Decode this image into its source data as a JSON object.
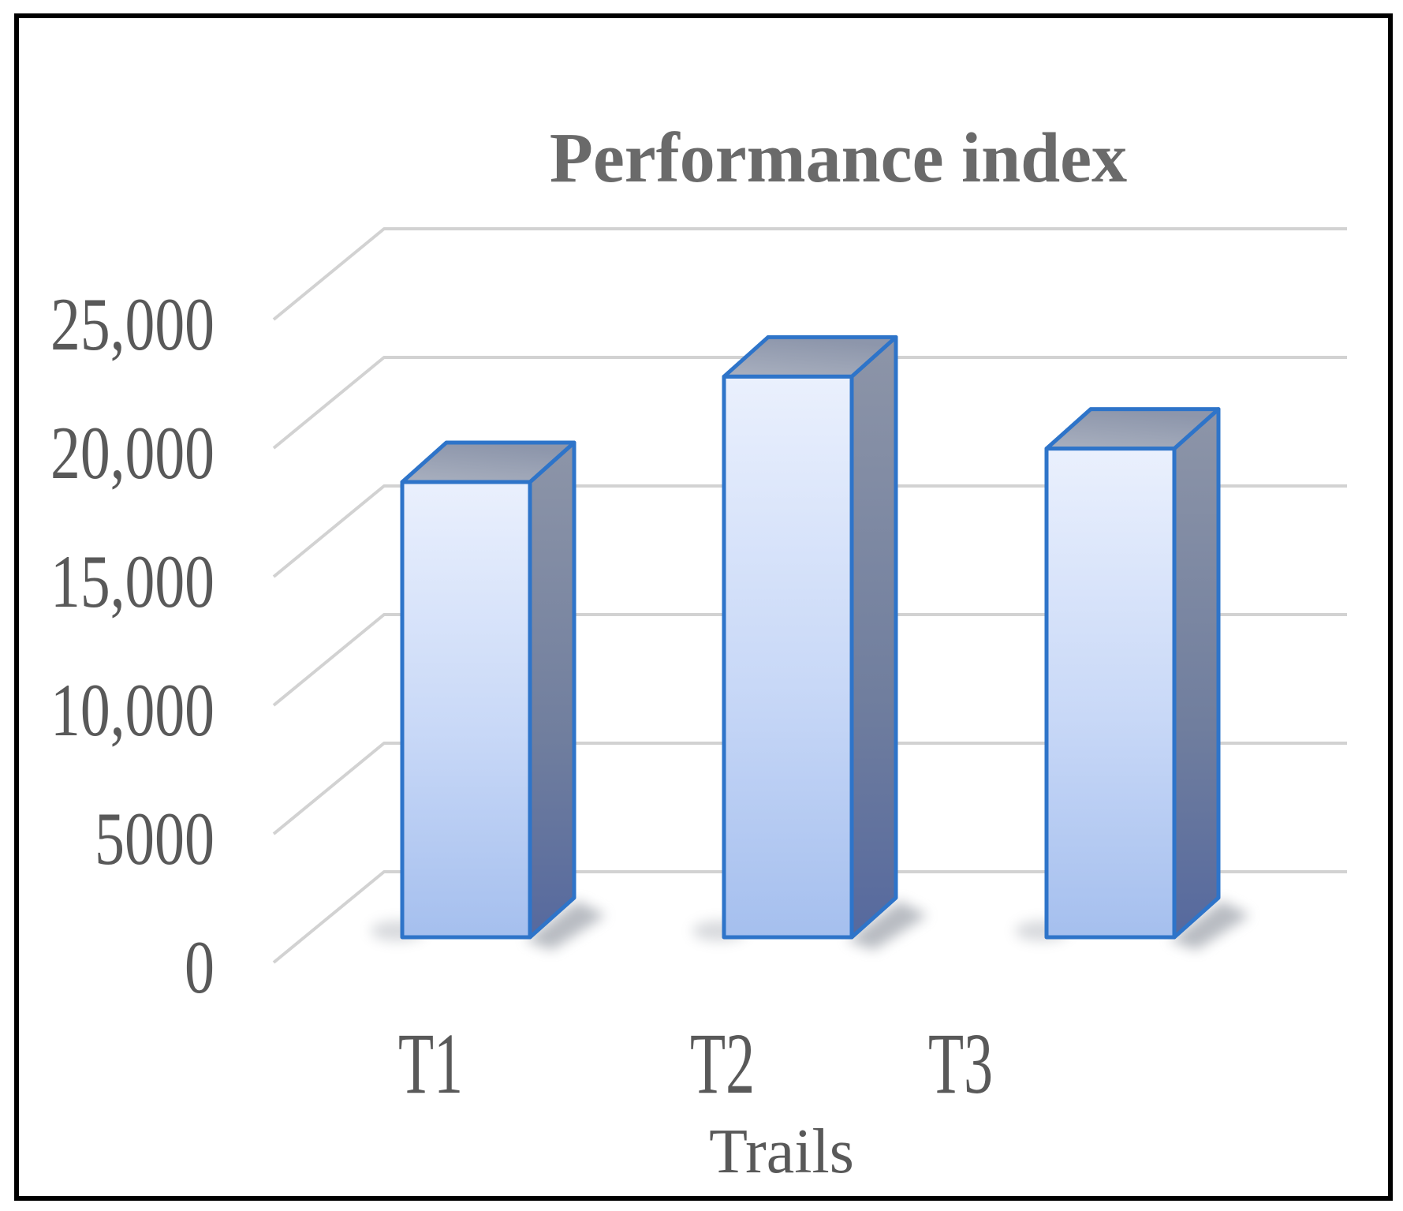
{
  "figure": {
    "background": "#ffffff",
    "border_color": "#000000"
  },
  "chart_data": {
    "type": "bar",
    "projection": "3d-perspective-column",
    "title": "Performance index",
    "xlabel": "Trails",
    "ylabel": "",
    "categories": [
      "T1",
      "T2",
      "T3"
    ],
    "values": [
      17700,
      21800,
      19000
    ],
    "values_note": "estimated from gridlines",
    "ylim": [
      0,
      25000
    ],
    "ytick_step": 5000,
    "yticks": [
      0,
      5000,
      10000,
      15000,
      20000,
      25000
    ],
    "ytick_labels": [
      "0",
      "5000",
      "10,000",
      "15,000",
      "20,000",
      "25,000"
    ],
    "grid": true,
    "legend": false,
    "colors": {
      "bar_front_top": "#eaf0fd",
      "bar_front_bottom": "#a5bfee",
      "bar_side_top": "#8d95a8",
      "bar_side_bottom": "#56699e",
      "bar_top_face_front": "#a9b0bf",
      "bar_top_face_back": "#8d96ab",
      "bar_edge": "#2e74c9",
      "gridline": "#d2d2d2",
      "tick_label": "#595959",
      "title_color": "#6a6a6a",
      "shadow": "#7e8490"
    }
  }
}
